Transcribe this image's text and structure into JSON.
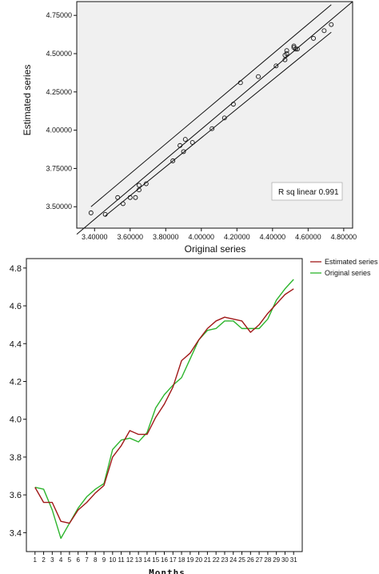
{
  "chart_data": [
    {
      "type": "scatter",
      "xlabel": "Original series",
      "ylabel": "Estimated series",
      "xlim": [
        3.3,
        4.85
      ],
      "ylim": [
        3.36,
        4.84
      ],
      "x_ticks": [
        "3.40000",
        "3.60000",
        "3.80000",
        "4.00000",
        "4.20000",
        "4.40000",
        "4.60000",
        "4.80000"
      ],
      "x_tick_values": [
        3.4,
        3.6,
        3.8,
        4.0,
        4.2,
        4.4,
        4.6,
        4.8
      ],
      "y_ticks": [
        "3.50000",
        "3.75000",
        "4.00000",
        "4.25000",
        "4.50000",
        "4.75000"
      ],
      "y_tick_values": [
        3.5,
        3.75,
        4.0,
        4.25,
        4.5,
        4.75
      ],
      "annotation": "R sq linear 0.991",
      "grid": false,
      "background": "#f0f0f0",
      "points": [
        {
          "x": 3.38,
          "y": 3.46
        },
        {
          "x": 3.46,
          "y": 3.45
        },
        {
          "x": 3.53,
          "y": 3.56
        },
        {
          "x": 3.56,
          "y": 3.52
        },
        {
          "x": 3.6,
          "y": 3.56
        },
        {
          "x": 3.63,
          "y": 3.56
        },
        {
          "x": 3.65,
          "y": 3.61
        },
        {
          "x": 3.65,
          "y": 3.64
        },
        {
          "x": 3.69,
          "y": 3.65
        },
        {
          "x": 3.84,
          "y": 3.8
        },
        {
          "x": 3.88,
          "y": 3.9
        },
        {
          "x": 3.9,
          "y": 3.86
        },
        {
          "x": 3.91,
          "y": 3.94
        },
        {
          "x": 3.95,
          "y": 3.92
        },
        {
          "x": 4.06,
          "y": 4.01
        },
        {
          "x": 4.13,
          "y": 4.08
        },
        {
          "x": 4.18,
          "y": 4.17
        },
        {
          "x": 4.22,
          "y": 4.31
        },
        {
          "x": 4.32,
          "y": 4.35
        },
        {
          "x": 4.42,
          "y": 4.42
        },
        {
          "x": 4.47,
          "y": 4.46
        },
        {
          "x": 4.47,
          "y": 4.49
        },
        {
          "x": 4.48,
          "y": 4.52
        },
        {
          "x": 4.48,
          "y": 4.5
        },
        {
          "x": 4.52,
          "y": 4.54
        },
        {
          "x": 4.53,
          "y": 4.53
        },
        {
          "x": 4.52,
          "y": 4.55
        },
        {
          "x": 4.54,
          "y": 4.53
        },
        {
          "x": 4.63,
          "y": 4.6
        },
        {
          "x": 4.69,
          "y": 4.65
        },
        {
          "x": 4.73,
          "y": 4.69
        }
      ],
      "fit_line": {
        "x": [
          3.3,
          4.85
        ],
        "y": [
          3.32,
          4.84
        ]
      },
      "band_upper": {
        "x": [
          3.38,
          4.73
        ],
        "y": [
          3.5,
          4.82
        ]
      },
      "band_lower": {
        "x": [
          3.46,
          4.73
        ],
        "y": [
          3.44,
          4.64
        ]
      }
    },
    {
      "type": "line",
      "xlabel": "Months",
      "ylabel": "",
      "x": [
        1,
        2,
        3,
        4,
        5,
        6,
        7,
        8,
        9,
        10,
        11,
        12,
        13,
        14,
        15,
        16,
        17,
        18,
        19,
        20,
        21,
        22,
        23,
        24,
        25,
        26,
        27,
        28,
        29,
        30,
        31
      ],
      "xlim": [
        0,
        32
      ],
      "ylim": [
        3.3,
        4.85
      ],
      "y_ticks": [
        "3.4",
        "3.6",
        "3.8",
        "4.0",
        "4.2",
        "4.4",
        "4.6",
        "4.8"
      ],
      "y_tick_values": [
        3.4,
        3.6,
        3.8,
        4.0,
        4.2,
        4.4,
        4.6,
        4.8
      ],
      "legend_position": "top-right",
      "grid": false,
      "series": [
        {
          "name": "Estimated series",
          "color": "#a01818",
          "values": [
            3.64,
            3.56,
            3.56,
            3.46,
            3.45,
            3.52,
            3.56,
            3.61,
            3.65,
            3.8,
            3.86,
            3.94,
            3.92,
            3.92,
            4.01,
            4.08,
            4.17,
            4.31,
            4.35,
            4.42,
            4.48,
            4.52,
            4.54,
            4.53,
            4.52,
            4.46,
            4.5,
            4.56,
            4.61,
            4.66,
            4.69
          ]
        },
        {
          "name": "Original series",
          "color": "#2db52d",
          "values": [
            3.64,
            3.63,
            3.52,
            3.37,
            3.45,
            3.53,
            3.59,
            3.63,
            3.66,
            3.84,
            3.89,
            3.9,
            3.88,
            3.93,
            4.06,
            4.13,
            4.18,
            4.22,
            4.32,
            4.42,
            4.47,
            4.48,
            4.52,
            4.52,
            4.48,
            4.48,
            4.48,
            4.53,
            4.63,
            4.69,
            4.74
          ]
        }
      ]
    }
  ]
}
